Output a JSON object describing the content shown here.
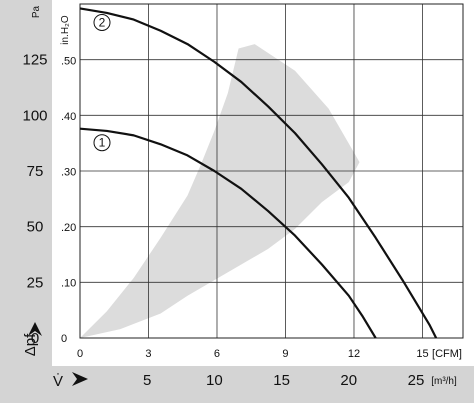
{
  "chart_data": {
    "type": "line",
    "xlabel": "V̇",
    "ylabel": "Δpf",
    "x_units": [
      "CFM",
      "m³/h"
    ],
    "y_units": [
      "Pa",
      "in.H₂O"
    ],
    "xlim_m3h": [
      0,
      28.5
    ],
    "ylim_pa": [
      0,
      150
    ],
    "x_ticks_cfm": [
      "0",
      "3",
      "6",
      "9",
      "12",
      "15"
    ],
    "x_ticks_m3h": [
      "5",
      "10",
      "15",
      "20",
      "25"
    ],
    "y_ticks_pa": [
      "0",
      "25",
      "50",
      "75",
      "100",
      "125"
    ],
    "y_ticks_inh2o": [
      "0",
      ".10",
      ".20",
      ".30",
      ".40",
      ".50"
    ],
    "grid": true,
    "series": [
      {
        "name": "1",
        "points": [
          [
            0,
            94
          ],
          [
            2,
            93
          ],
          [
            4,
            91
          ],
          [
            6,
            87
          ],
          [
            8,
            82
          ],
          [
            10,
            75
          ],
          [
            12,
            67
          ],
          [
            14,
            57
          ],
          [
            16,
            46
          ],
          [
            18,
            33
          ],
          [
            20,
            19
          ],
          [
            21,
            10
          ],
          [
            22,
            0
          ]
        ]
      },
      {
        "name": "2",
        "points": [
          [
            0,
            148
          ],
          [
            2,
            146
          ],
          [
            4,
            143
          ],
          [
            6,
            138
          ],
          [
            8,
            132
          ],
          [
            10,
            124
          ],
          [
            12,
            115
          ],
          [
            14,
            104
          ],
          [
            16,
            92
          ],
          [
            18,
            78
          ],
          [
            20,
            63
          ],
          [
            22,
            45
          ],
          [
            24,
            26
          ],
          [
            26,
            6
          ],
          [
            26.5,
            0
          ]
        ]
      }
    ],
    "operating_area": [
      [
        0,
        0
      ],
      [
        3,
        4
      ],
      [
        6,
        11
      ],
      [
        8,
        19
      ],
      [
        10,
        26
      ],
      [
        12,
        33
      ],
      [
        14,
        40
      ],
      [
        16,
        49
      ],
      [
        18,
        61
      ],
      [
        20,
        70
      ],
      [
        20.8,
        79
      ],
      [
        18.5,
        103
      ],
      [
        16,
        120
      ],
      [
        13,
        132
      ],
      [
        11.8,
        130
      ],
      [
        11,
        110
      ],
      [
        10,
        93
      ],
      [
        9,
        78
      ],
      [
        8,
        64
      ],
      [
        6,
        45
      ],
      [
        4,
        27
      ],
      [
        2,
        12
      ],
      [
        0,
        0
      ]
    ]
  }
}
